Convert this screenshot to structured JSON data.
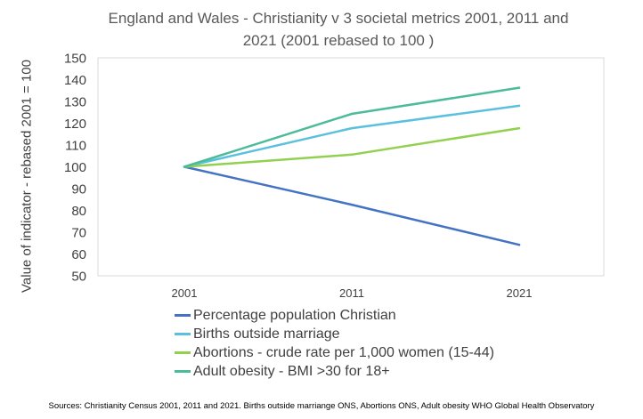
{
  "chart_data": {
    "type": "line",
    "title_line1": "England and Wales - Christianity v 3 societal metrics 2001, 2011 and",
    "title_line2": "2021 (2001 rebased to 100 )",
    "xlabel": "",
    "ylabel": "Value of indicator - rebased 2001 = 100",
    "categories": [
      "2001",
      "2011",
      "2021"
    ],
    "ylim": [
      50,
      150
    ],
    "yticks": [
      "150",
      "140",
      "130",
      "120",
      "110",
      "100",
      "90",
      "80",
      "70",
      "60",
      "50"
    ],
    "grid": false,
    "legend_position": "bottom",
    "series": [
      {
        "name": "Percentage population Christian",
        "values": [
          100,
          82.6,
          64.2
        ],
        "color": "#4472c4"
      },
      {
        "name": "Births outside marriage",
        "values": [
          100,
          117.7,
          128.0
        ],
        "color": "#5bc0de"
      },
      {
        "name": "Abortions - crude rate per 1,000 women (15-44)",
        "values": [
          100,
          105.6,
          117.7
        ],
        "color": "#92d050"
      },
      {
        "name": "Adult obesity - BMI >30 for 18+",
        "values": [
          100,
          124.3,
          136.3
        ],
        "color": "#4cbb9a"
      }
    ]
  },
  "sources": "Sources:  Christianity Census 2001, 2011 and 2021.  Births outside marriange ONS, Abortions ONS, Adult obesity WHO Global Health Observatory"
}
